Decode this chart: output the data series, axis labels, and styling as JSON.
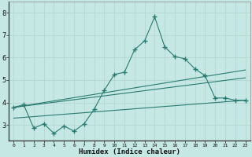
{
  "xlabel": "Humidex (Indice chaleur)",
  "background_color": "#c5e8e5",
  "grid_color": "#b8d8d4",
  "line_color": "#2a7a70",
  "xlim": [
    -0.5,
    23.5
  ],
  "ylim": [
    2.3,
    8.5
  ],
  "xticks": [
    0,
    1,
    2,
    3,
    4,
    5,
    6,
    7,
    8,
    9,
    10,
    11,
    12,
    13,
    14,
    15,
    16,
    17,
    18,
    19,
    20,
    21,
    22,
    23
  ],
  "yticks": [
    3,
    4,
    5,
    6,
    7,
    8
  ],
  "main_x": [
    0,
    1,
    2,
    3,
    4,
    5,
    6,
    7,
    8,
    9,
    10,
    11,
    12,
    13,
    14,
    15,
    16,
    17,
    18,
    19,
    20,
    21,
    22,
    23
  ],
  "main_y": [
    3.78,
    3.9,
    2.85,
    3.05,
    2.62,
    2.95,
    2.72,
    3.05,
    3.7,
    4.55,
    5.25,
    5.35,
    6.35,
    6.75,
    7.82,
    6.48,
    6.05,
    5.95,
    5.5,
    5.2,
    4.2,
    4.2,
    4.1,
    4.1
  ],
  "line1_x": [
    0,
    23
  ],
  "line1_y": [
    3.78,
    5.45
  ],
  "line2_x": [
    0,
    23
  ],
  "line2_y": [
    3.78,
    5.1
  ],
  "line3_x": [
    0,
    23
  ],
  "line3_y": [
    3.3,
    4.1
  ]
}
